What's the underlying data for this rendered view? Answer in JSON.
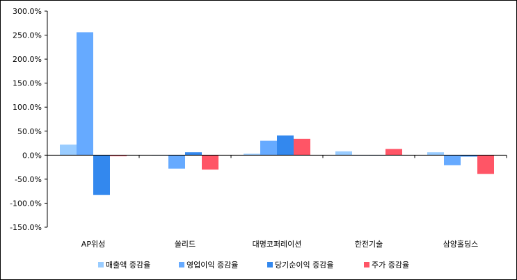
{
  "chart_data": {
    "type": "bar",
    "title": "",
    "xlabel": "",
    "ylabel": "",
    "categories": [
      "AP위성",
      "쏠리드",
      "대명코퍼레이션",
      "한전기술",
      "삼양홀딩스"
    ],
    "series": [
      {
        "name": "매출액 증감율",
        "color": "#99ccff",
        "values": [
          22,
          0,
          3,
          8,
          6
        ]
      },
      {
        "name": "영업이익 증감율",
        "color": "#66aaff",
        "values": [
          256,
          -28,
          30,
          0,
          -21
        ]
      },
      {
        "name": "당기순이익 증감율",
        "color": "#3388ee",
        "values": [
          -83,
          6,
          41,
          0,
          -3
        ]
      },
      {
        "name": "주가 증감율",
        "color": "#ff5566",
        "values": [
          -2,
          -30,
          34,
          13,
          -39
        ]
      }
    ],
    "ylim": [
      -150,
      300
    ],
    "yticks": [
      -150,
      -100,
      -50,
      0,
      50,
      100,
      150,
      200,
      250,
      300
    ],
    "ytick_labels": [
      "-150.0%",
      "-100.0%",
      "-50.0%",
      "0.0%",
      "50.0%",
      "100.0%",
      "150.0%",
      "200.0%",
      "250.0%",
      "300.0%"
    ],
    "grid": false,
    "legend_position": "bottom"
  }
}
